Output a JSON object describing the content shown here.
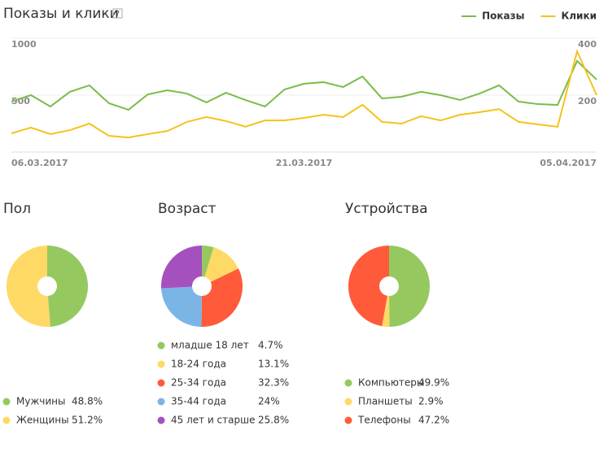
{
  "chart_data": [
    {
      "type": "line",
      "title": "Показы и клики",
      "help": "?",
      "categories": [
        "06.03.2017",
        null,
        null,
        null,
        null,
        null,
        null,
        null,
        null,
        null,
        null,
        null,
        null,
        null,
        null,
        "21.03.2017",
        null,
        null,
        null,
        null,
        null,
        null,
        null,
        null,
        null,
        null,
        null,
        null,
        null,
        null,
        "05.04.2017"
      ],
      "series": [
        {
          "name": "Показы",
          "color": "#7cbb4a",
          "values": [
            443,
            500,
            400,
            529,
            586,
            429,
            371,
            507,
            543,
            514,
            436,
            521,
            457,
            400,
            550,
            600,
            614,
            571,
            664,
            471,
            486,
            529,
            500,
            457,
            514,
            586,
            443,
            421,
            414,
            800,
            636
          ]
        },
        {
          "name": "Клики",
          "color": "#f5c21b",
          "axis": "y2",
          "values": [
            66,
            86,
            63,
            77,
            100,
            57,
            51,
            63,
            74,
            106,
            123,
            109,
            89,
            111,
            111,
            120,
            131,
            123,
            166,
            106,
            100,
            126,
            111,
            131,
            140,
            151,
            106,
            97,
            89,
            354,
            200
          ]
        }
      ],
      "ylim": [
        0,
        1000
      ],
      "yticks": [
        500,
        1000
      ],
      "y2lim": [
        0,
        400
      ],
      "y2ticks": [
        200,
        400
      ],
      "grid": true,
      "legend": "top-right"
    },
    {
      "type": "pie",
      "title": "Пол",
      "categories": [
        "Мужчины",
        "Женщины"
      ],
      "values": [
        48.8,
        51.2
      ],
      "value_labels": [
        "48.8%",
        "51.2%"
      ],
      "colors": [
        "#95c95f",
        "#ffd966"
      ]
    },
    {
      "type": "pie",
      "title": "Возраст",
      "categories": [
        "младше 18 лет",
        "18-24 года",
        "25-34 года",
        "35-44 года",
        "45 лет и старше"
      ],
      "values": [
        4.7,
        13.1,
        32.3,
        24,
        25.8
      ],
      "value_labels": [
        "4.7%",
        "13.1%",
        "32.3%",
        "24%",
        "25.8%"
      ],
      "colors": [
        "#95c95f",
        "#ffd966",
        "#ff5a3a",
        "#7ab5e6",
        "#a550bf"
      ]
    },
    {
      "type": "pie",
      "title": "Устройства",
      "categories": [
        "Компьютеры",
        "Планшеты",
        "Телефоны"
      ],
      "values": [
        49.9,
        2.9,
        47.2
      ],
      "value_labels": [
        "49.9%",
        "2.9%",
        "47.2%"
      ],
      "colors": [
        "#95c95f",
        "#ffd966",
        "#ff5a3a"
      ]
    }
  ]
}
